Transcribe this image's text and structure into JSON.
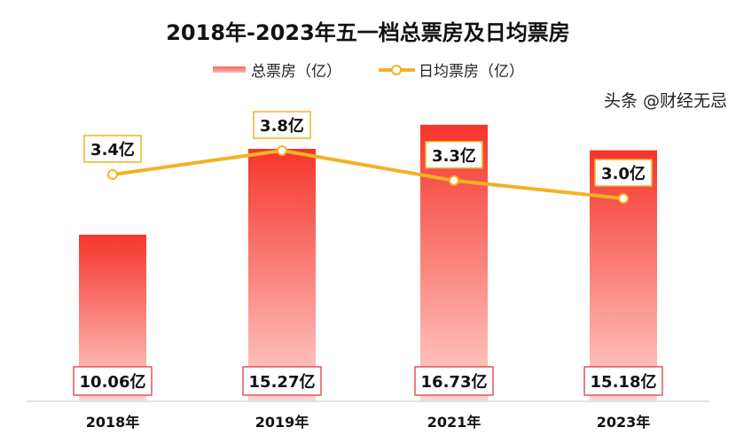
{
  "chart_data": {
    "type": "bar+line",
    "title": "2018年-2023年五一档总票房及日均票房",
    "categories": [
      "2018年",
      "2019年",
      "2021年",
      "2023年"
    ],
    "series": [
      {
        "name": "总票房（亿）",
        "type": "bar",
        "values": [
          10.06,
          15.27,
          16.73,
          15.18
        ],
        "labels": [
          "10.06亿",
          "15.27亿",
          "16.73亿",
          "15.18亿"
        ],
        "color": "#f5352b"
      },
      {
        "name": "日均票房（亿）",
        "type": "line",
        "values": [
          3.4,
          3.8,
          3.3,
          3.0
        ],
        "labels": [
          "3.4亿",
          "3.8亿",
          "3.3亿",
          "3.0亿"
        ],
        "color": "#f0b323"
      }
    ],
    "legend": "top-center",
    "grid": false
  },
  "watermark": "头条 @财经无忌"
}
